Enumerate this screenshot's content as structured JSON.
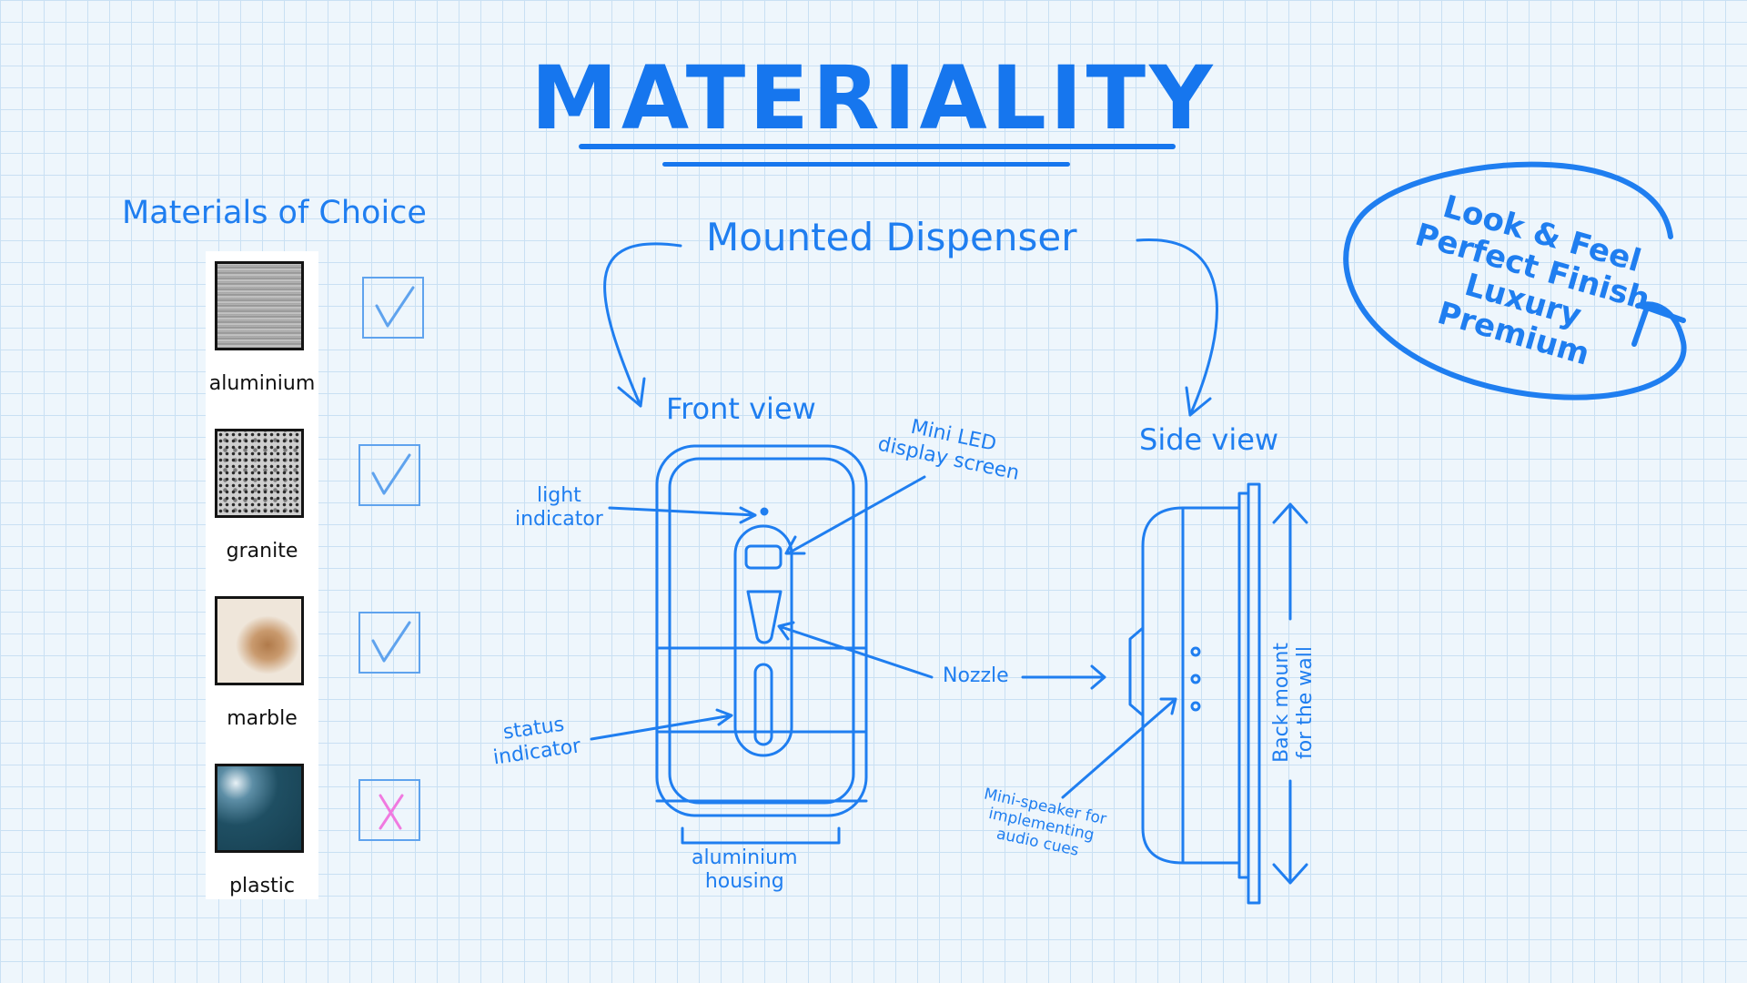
{
  "title": "MATERIALITY",
  "materials": {
    "heading": "Materials of Choice",
    "items": [
      {
        "label": "aluminium",
        "chosen": true
      },
      {
        "label": "granite",
        "chosen": true
      },
      {
        "label": "marble",
        "chosen": true
      },
      {
        "label": "plastic",
        "chosen": false
      }
    ]
  },
  "dispenser": {
    "heading": "Mounted Dispenser",
    "front_view": "Front view",
    "side_view": "Side view"
  },
  "annotations": {
    "mini_led_1": "Mini LED",
    "mini_led_2": "display screen",
    "light_indicator_1": "light",
    "light_indicator_2": "indicator",
    "nozzle": "Nozzle",
    "status_indicator_1": "status",
    "status_indicator_2": "indicator",
    "housing_1": "aluminium",
    "housing_2": "housing",
    "speaker_1": "Mini-speaker for",
    "speaker_2": "implementing",
    "speaker_3": "audio cues",
    "back_mount_1": "Back mount",
    "back_mount_2": "for the wall"
  },
  "qualities": [
    "Look & Feel",
    "Perfect Finish",
    "Luxury",
    "Premium"
  ],
  "colors": {
    "ink": "#1f7ef0",
    "check": "#5fa3ee",
    "cross": "#f07ae0",
    "grid": "#c9e0f3"
  }
}
